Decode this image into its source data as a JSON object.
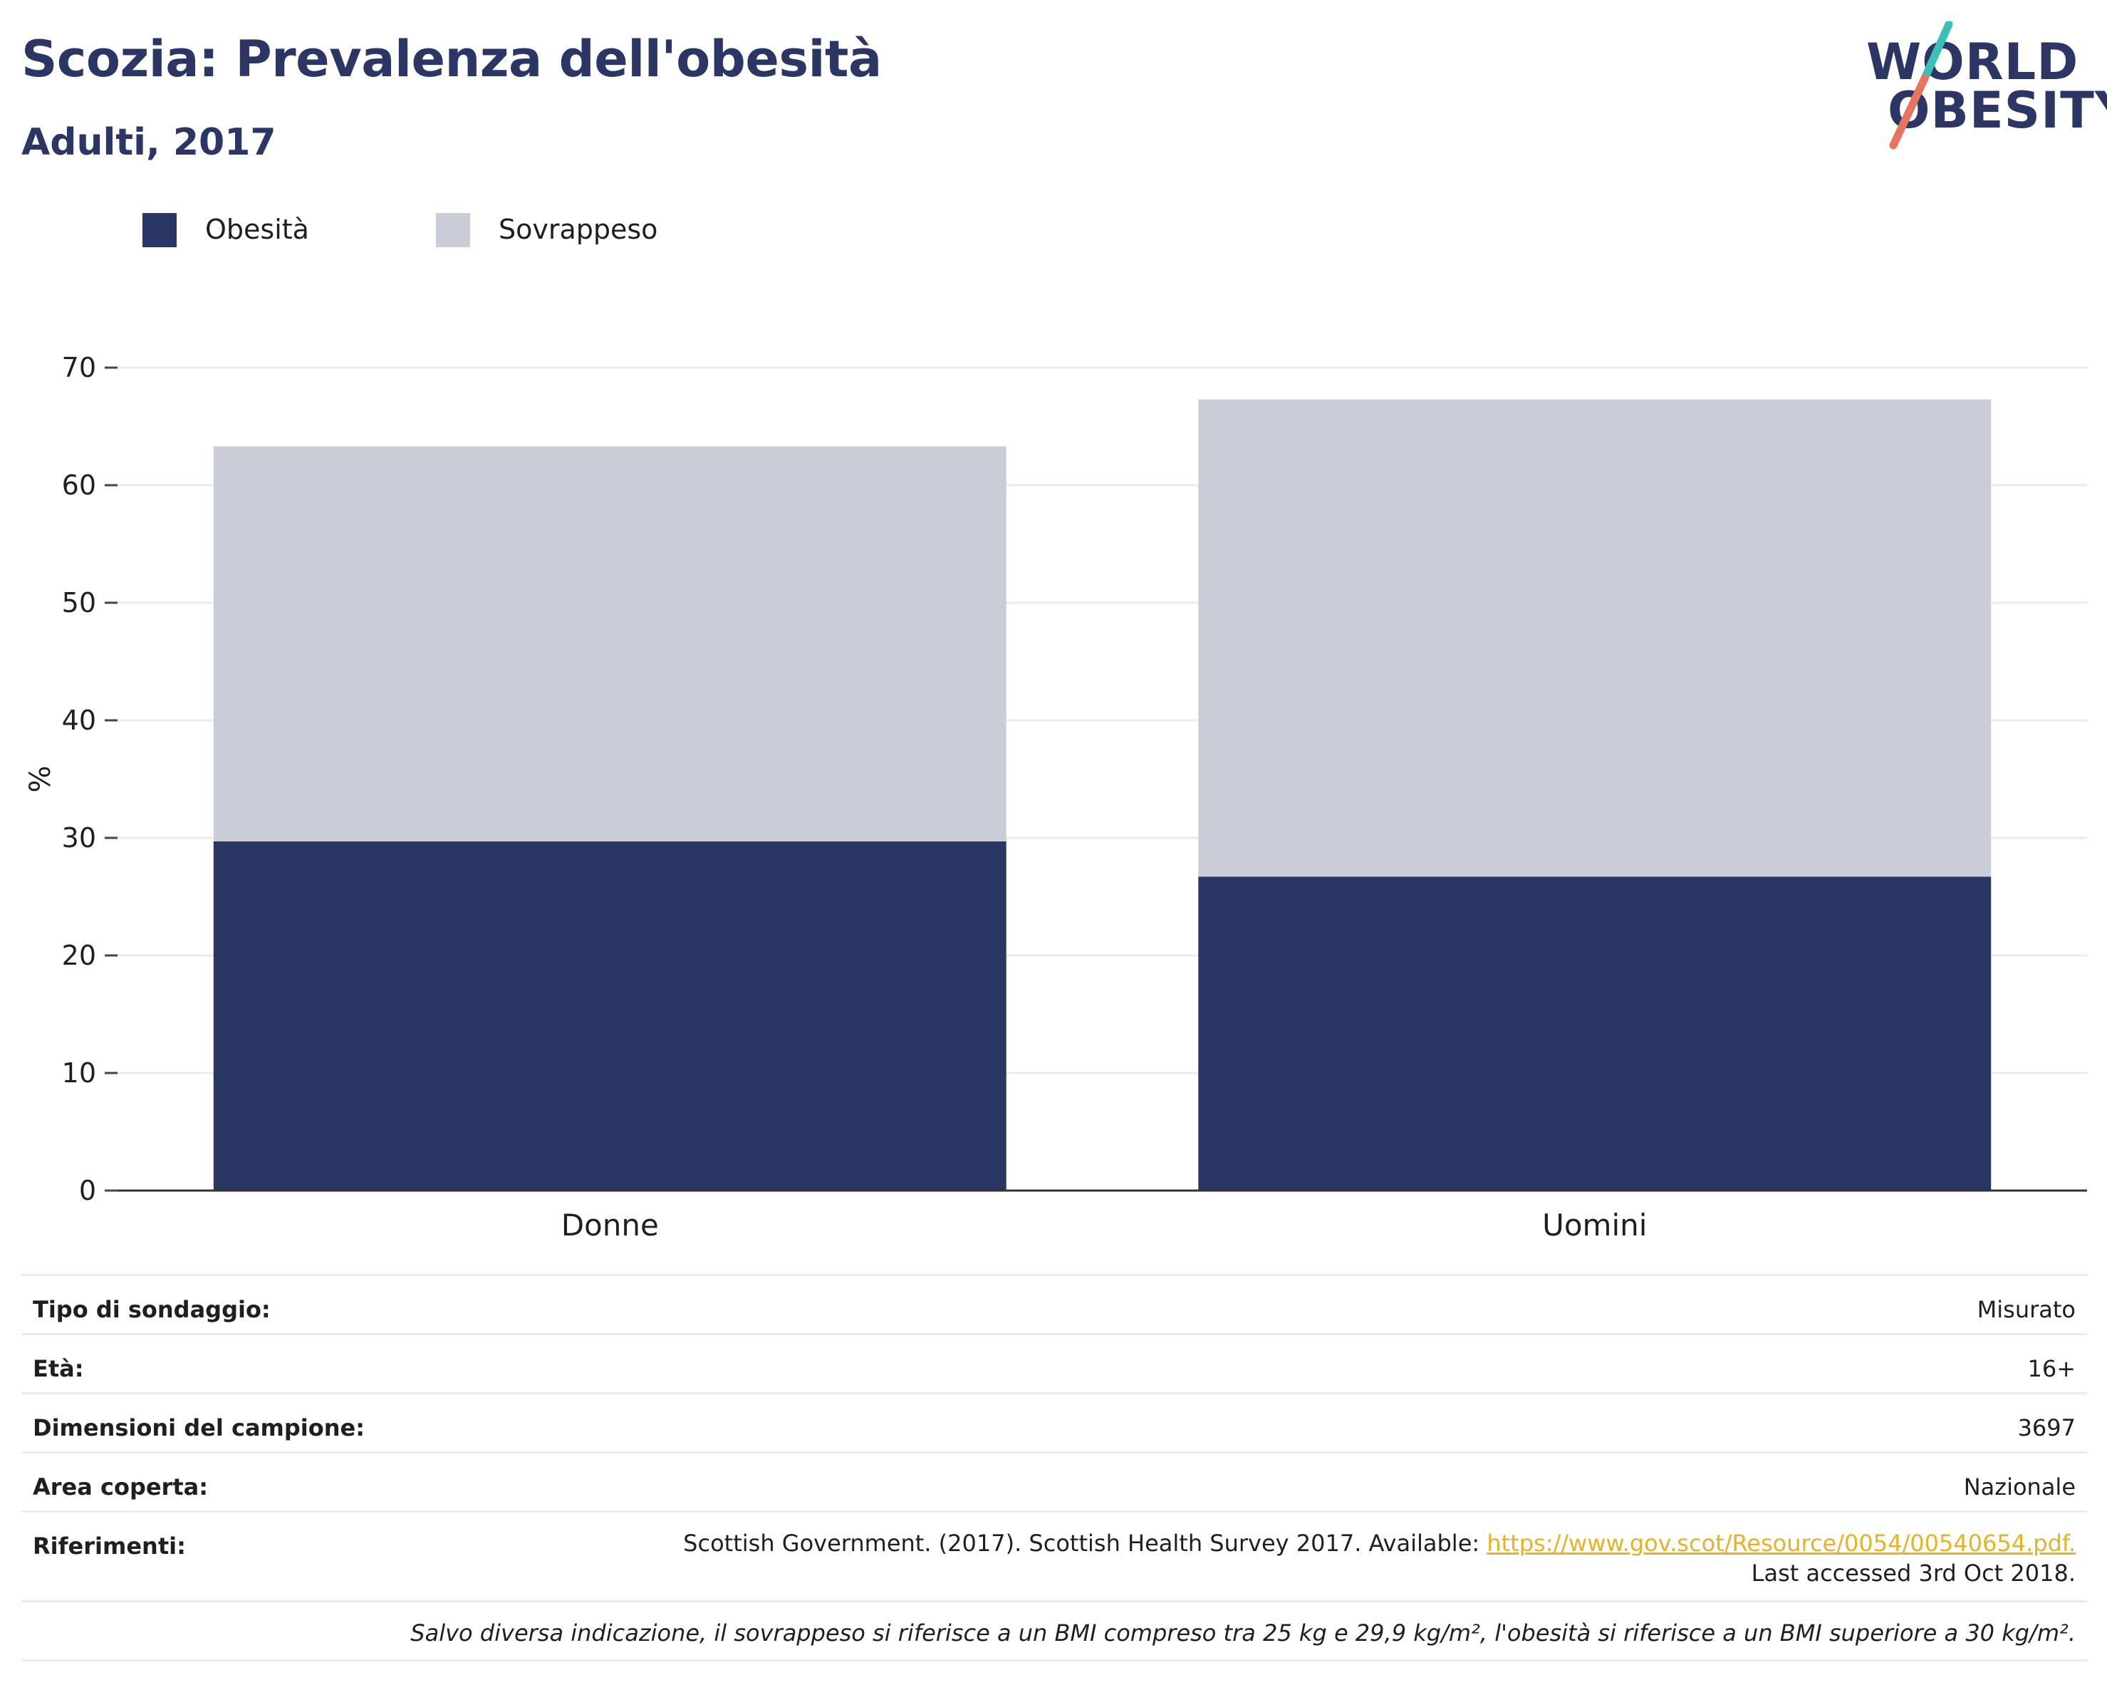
{
  "header": {
    "title": "Scozia: Prevalenza dell'obesità",
    "subtitle": "Adulti, 2017"
  },
  "logo": {
    "line1": "WORLD",
    "line2": "OBESITY"
  },
  "colors": {
    "obesity": "#2a3663",
    "overweight": "#cacdd8",
    "title": "#2b3664",
    "link": "#e6b325",
    "logo_teal": "#3bbfb9",
    "logo_coral": "#e8735e"
  },
  "chart_data": {
    "type": "bar",
    "stacked": true,
    "categories": [
      "Donne",
      "Uomini"
    ],
    "series": [
      {
        "name": "Obesità",
        "values": [
          29.7,
          26.7
        ],
        "color": "#2a3663"
      },
      {
        "name": "Sovrappeso",
        "values": [
          33.6,
          40.6
        ],
        "color": "#cacdd8"
      }
    ],
    "ylabel": "%",
    "xlabel": "",
    "ylim": [
      0,
      70
    ],
    "yticks": [
      0,
      10,
      20,
      30,
      40,
      50,
      60,
      70
    ],
    "grid": true,
    "legend": "top-left"
  },
  "info": {
    "survey_type_label": "Tipo di sondaggio:",
    "survey_type_value": "Misurato",
    "age_label": "Età:",
    "age_value": "16+",
    "sample_label": "Dimensioni del campione:",
    "sample_value": "3697",
    "area_label": "Area coperta:",
    "area_value": "Nazionale",
    "refs_label": "Riferimenti:",
    "refs_text_before": "Scottish Government. (2017). Scottish Health Survey 2017. Available: ",
    "refs_link": "https://www.gov.scot/Resource/0054/00540654.pdf.",
    "refs_text_after": " Last accessed 3rd Oct 2018.",
    "note": "Salvo diversa indicazione, il sovrappeso si riferisce a un BMI compreso tra 25 kg e 29,9 kg/m², l'obesità si riferisce a un BMI superiore a 30 kg/m²."
  }
}
